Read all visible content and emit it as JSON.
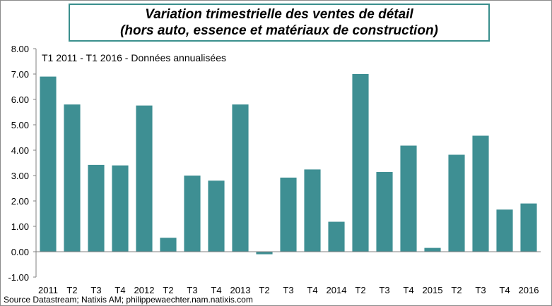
{
  "chart_data": {
    "type": "bar",
    "title_lines": [
      "Variation trimestrielle des ventes de détail",
      "(hors auto, essence et matériaux de construction)"
    ],
    "subtitle": "T1 2011 - T1 2016 - Données annualisées",
    "categories": [
      "2011",
      "T2",
      "T3",
      "T4",
      "2012",
      "T2",
      "T3",
      "T4",
      "2013",
      "T2",
      "T3",
      "T4",
      "2014",
      "T2",
      "T3",
      "T4",
      "2015",
      "T2",
      "T3",
      "T4",
      "2016"
    ],
    "values": [
      6.9,
      5.8,
      3.42,
      3.4,
      5.76,
      0.55,
      3.0,
      2.8,
      5.8,
      -0.1,
      2.92,
      3.24,
      1.18,
      7.0,
      3.14,
      4.18,
      0.15,
      3.82,
      4.57,
      1.66,
      1.9
    ],
    "ylim": [
      -1.0,
      8.0
    ],
    "yticks": [
      "8.00",
      "7.00",
      "6.00",
      "5.00",
      "4.00",
      "3.00",
      "2.00",
      "1.00",
      "0.00",
      "-1.00"
    ],
    "bar_color": "#3e8f93",
    "xlabel": "",
    "ylabel": "",
    "grid": false,
    "legend": "none"
  },
  "source": "Source Datastream; Natixis AM; philippewaechter.nam.natixis.com",
  "colors": {
    "bars": "#3e8f93",
    "title_border": "#3a8f8d",
    "frame": "#8a8a8a"
  }
}
